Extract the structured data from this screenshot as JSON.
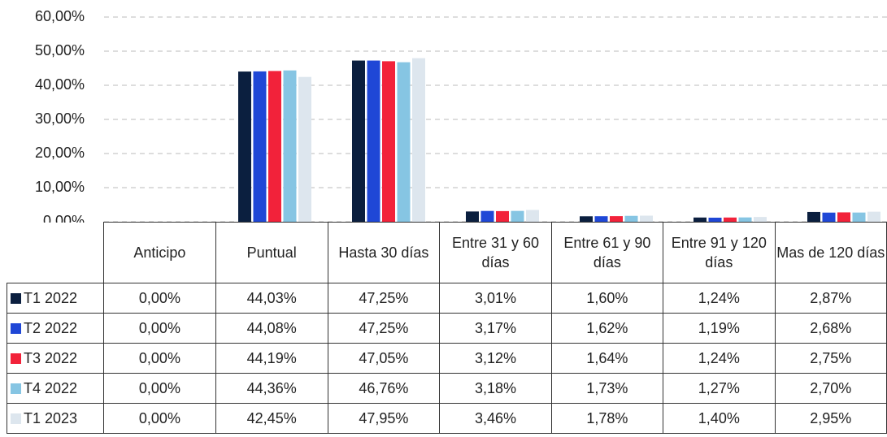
{
  "chart_data": {
    "type": "bar",
    "categories": [
      "Anticipo",
      "Puntual",
      "Hasta 30 días",
      "Entre 31 y 60 días",
      "Entre 61 y 90 días",
      "Entre 91 y 120 días",
      "Mas de 120 días"
    ],
    "series": [
      {
        "name": "T1 2022",
        "color": "#0b1f3f",
        "values": [
          0,
          44.03,
          47.25,
          3.01,
          1.6,
          1.24,
          2.87
        ],
        "value_labels": [
          "0,00%",
          "44,03%",
          "47,25%",
          "3,01%",
          "1,60%",
          "1,24%",
          "2,87%"
        ]
      },
      {
        "name": "T2 2022",
        "color": "#1f47d6",
        "values": [
          0,
          44.08,
          47.25,
          3.17,
          1.62,
          1.19,
          2.68
        ],
        "value_labels": [
          "0,00%",
          "44,08%",
          "47,25%",
          "3,17%",
          "1,62%",
          "1,19%",
          "2,68%"
        ]
      },
      {
        "name": "T3 2022",
        "color": "#f2223a",
        "values": [
          0,
          44.19,
          47.05,
          3.12,
          1.64,
          1.24,
          2.75
        ],
        "value_labels": [
          "0,00%",
          "44,19%",
          "47,05%",
          "3,12%",
          "1,64%",
          "1,24%",
          "2,75%"
        ]
      },
      {
        "name": "T4 2022",
        "color": "#86c5e3",
        "values": [
          0,
          44.36,
          46.76,
          3.18,
          1.73,
          1.27,
          2.7
        ],
        "value_labels": [
          "0,00%",
          "44,36%",
          "46,76%",
          "3,18%",
          "1,73%",
          "1,27%",
          "2,70%"
        ]
      },
      {
        "name": "T1 2023",
        "color": "#dde6ee",
        "values": [
          0,
          42.45,
          47.95,
          3.46,
          1.78,
          1.4,
          2.95
        ],
        "value_labels": [
          "0,00%",
          "42,45%",
          "47,95%",
          "3,46%",
          "1,78%",
          "1,40%",
          "2,95%"
        ]
      }
    ],
    "ylim": [
      0,
      60
    ],
    "yticks": [
      {
        "value": 0,
        "label": "0,00%"
      },
      {
        "value": 10,
        "label": "10,00%"
      },
      {
        "value": 20,
        "label": "20,00%"
      },
      {
        "value": 30,
        "label": "30,00%"
      },
      {
        "value": 40,
        "label": "40,00%"
      },
      {
        "value": 50,
        "label": "50,00%"
      },
      {
        "value": 60,
        "label": "60,00%"
      }
    ],
    "grid": true
  }
}
